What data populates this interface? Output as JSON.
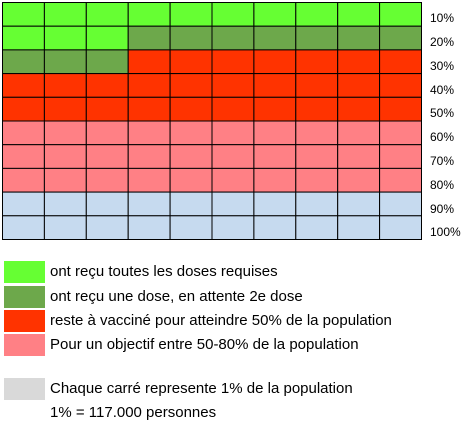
{
  "chart_data": {
    "type": "table",
    "rows": [
      "10%",
      "20%",
      "30%",
      "40%",
      "50%",
      "60%",
      "70%",
      "80%",
      "90%",
      "100%"
    ],
    "columns": 10,
    "categories": [
      {
        "key": "full",
        "label": "ont reçu toutes les doses requises",
        "color": "#66FF33",
        "percent": 13
      },
      {
        "key": "one_dose",
        "label": "ont reçu une dose, en attente 2e dose",
        "color": "#6DA84B",
        "percent": 10
      },
      {
        "key": "to_50",
        "label": "reste à vacciné pour atteindre 50% de la population",
        "color": "#FF3300",
        "percent": 27
      },
      {
        "key": "to_80",
        "label": "Pour un objectif entre 50-80% de la population",
        "color": "#FF8085",
        "percent": 30
      },
      {
        "key": "rest",
        "label": "",
        "color": "#C6DAEF",
        "percent": 20
      }
    ]
  },
  "note": {
    "color": "#D9D9D9",
    "line1": "Chaque carré represente 1% de la population",
    "line2": "1% = 117.000 personnes"
  }
}
